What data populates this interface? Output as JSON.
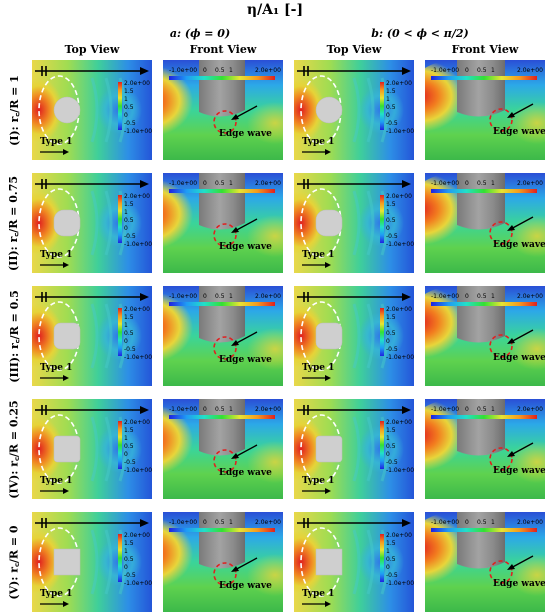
{
  "figure": {
    "title": "η/A₁ [-]",
    "columns": [
      {
        "label": "a: (ϕ = 0)"
      },
      {
        "label": "b: (0 < ϕ < π/2)"
      }
    ],
    "view_labels": [
      "Top View",
      "Front View",
      "Top View",
      "Front View"
    ],
    "rows": [
      {
        "label": "(I): r꜀/R = 1",
        "shape": "circle"
      },
      {
        "label": "(II): r꜀/R = 0.75",
        "shape": "round075"
      },
      {
        "label": "(III): r꜀/R = 0.5",
        "shape": "round05"
      },
      {
        "label": "(IV): r꜀/R = 0.25",
        "shape": "round025"
      },
      {
        "label": "(V): r꜀/R = 0",
        "shape": "square"
      }
    ],
    "annotations": {
      "type_label": "Type 1",
      "edge_label": "Edge wave"
    },
    "colorbar": {
      "vertical_ticks": [
        "2.0e+00",
        "1.5",
        "1",
        "0.5",
        "0",
        "-0.5",
        "-1.0e+00"
      ],
      "horizontal_ticks": [
        "-1.0e+00",
        "0",
        "0.5",
        "1",
        "2.0e+00"
      ],
      "colors": [
        "#1f22e0",
        "#1f9cf5",
        "#22e0c8",
        "#33e033",
        "#e6e633",
        "#f59a1f",
        "#e0201f"
      ]
    }
  }
}
